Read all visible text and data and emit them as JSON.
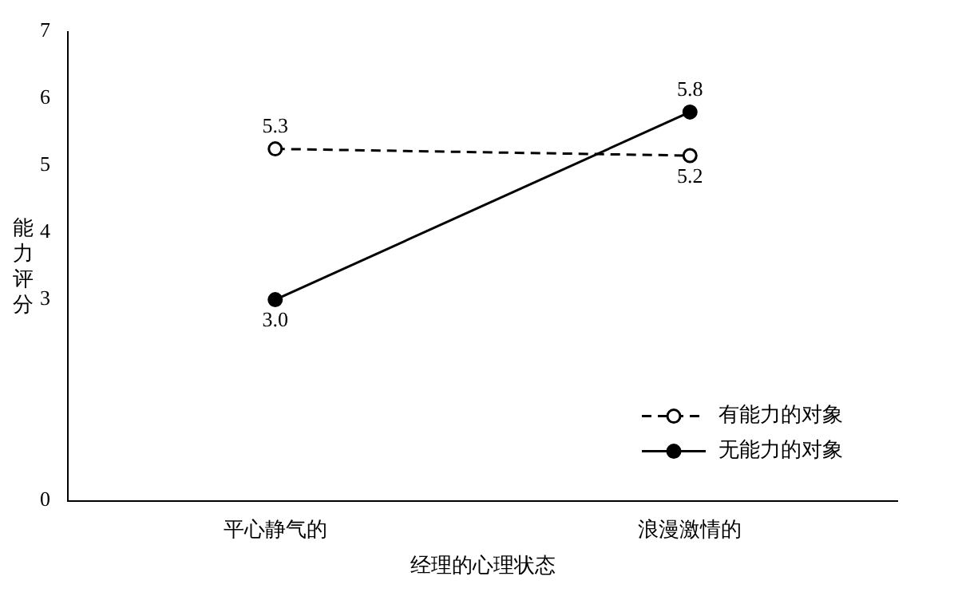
{
  "chart_data": {
    "type": "line",
    "xlabel": "经理的心理状态",
    "ylabel": "能力评分",
    "categories": [
      "平心静气的",
      "浪漫激情的"
    ],
    "series": [
      {
        "name": "有能力的对象",
        "color": "#000000",
        "values": [
          5.25,
          5.15
        ],
        "value_labels": [
          "5.3",
          "5.2"
        ],
        "marker": "circle",
        "line_style": "dashed"
      },
      {
        "name": "无能力的对象",
        "color": "#000000",
        "values": [
          3.0,
          5.8
        ],
        "value_labels": [
          "3.0",
          "5.8"
        ],
        "marker": "circle",
        "line_style": "solid"
      }
    ],
    "ylim": [
      0,
      7
    ],
    "yticks": [
      0,
      3,
      4,
      5,
      6,
      7
    ],
    "grid": false,
    "legend": "bottom right"
  }
}
